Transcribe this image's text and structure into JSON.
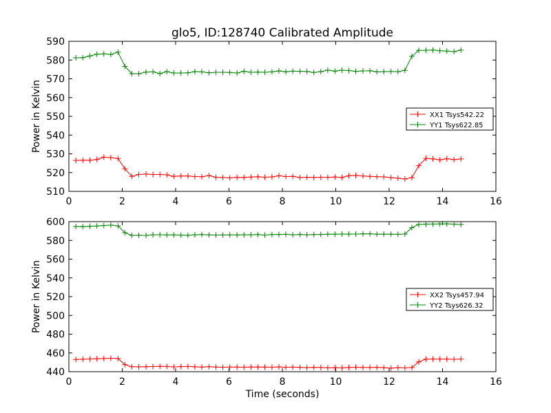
{
  "figure": {
    "title": "glo5, ID:128740 Calibrated Amplitude",
    "xlabel": "Time (seconds)"
  },
  "chart_data": [
    {
      "type": "line",
      "title": "glo5, ID:128740 Calibrated Amplitude",
      "xlabel": "",
      "ylabel": "Power in Kelvin",
      "xlim": [
        0,
        16
      ],
      "ylim": [
        510,
        590
      ],
      "xticks": [
        0,
        2,
        4,
        6,
        8,
        10,
        12,
        14,
        16
      ],
      "yticks": [
        510,
        520,
        530,
        540,
        550,
        560,
        570,
        580,
        590
      ],
      "grid": false,
      "legend_position": "center-right",
      "x": [
        0.26,
        0.52,
        0.79,
        1.05,
        1.31,
        1.57,
        1.84,
        2.1,
        2.36,
        2.62,
        2.89,
        3.15,
        3.41,
        3.67,
        3.93,
        4.2,
        4.46,
        4.72,
        4.98,
        5.25,
        5.51,
        5.77,
        6.03,
        6.3,
        6.56,
        6.82,
        7.08,
        7.34,
        7.61,
        7.87,
        8.13,
        8.39,
        8.66,
        8.92,
        9.18,
        9.44,
        9.7,
        9.97,
        10.23,
        10.49,
        10.75,
        11.02,
        11.28,
        11.54,
        11.8,
        12.07,
        12.33,
        12.59,
        12.85,
        13.11,
        13.38,
        13.64,
        13.9,
        14.16,
        14.43,
        14.69
      ],
      "series": [
        {
          "name": "XX1 Tsys542.22",
          "color": "#ff0000",
          "values": [
            526.5,
            526.6,
            526.6,
            527.0,
            528.2,
            528.0,
            527.5,
            522.0,
            518.0,
            519.0,
            519.2,
            519.0,
            519.0,
            518.8,
            518.0,
            518.2,
            518.2,
            517.9,
            517.8,
            518.4,
            517.5,
            517.4,
            517.2,
            517.5,
            517.4,
            517.6,
            517.8,
            517.5,
            517.7,
            518.3,
            517.9,
            518.0,
            517.4,
            517.5,
            517.4,
            517.5,
            517.5,
            517.6,
            517.4,
            518.3,
            518.5,
            518.2,
            518.0,
            517.8,
            517.7,
            517.3,
            517.0,
            516.6,
            517.3,
            523.7,
            527.6,
            527.3,
            526.8,
            527.4,
            526.9,
            527.3
          ]
        },
        {
          "name": "YY1 Tsys622.85",
          "color": "#008000",
          "values": [
            581.2,
            581.3,
            582.2,
            583.1,
            583.3,
            583.0,
            584.2,
            576.6,
            572.7,
            572.7,
            573.6,
            573.7,
            572.8,
            573.8,
            573.1,
            573.1,
            573.2,
            573.8,
            573.7,
            573.2,
            573.5,
            573.5,
            573.4,
            573.1,
            574.0,
            573.5,
            573.6,
            573.5,
            573.7,
            574.2,
            573.7,
            574.1,
            574.0,
            573.9,
            573.4,
            573.8,
            574.6,
            574.1,
            574.6,
            574.4,
            574.0,
            574.2,
            574.3,
            573.7,
            573.8,
            573.9,
            573.8,
            574.5,
            582.0,
            585.2,
            585.2,
            585.3,
            585.0,
            584.8,
            584.5,
            585.3
          ]
        }
      ]
    },
    {
      "type": "line",
      "title": "",
      "xlabel": "Time (seconds)",
      "ylabel": "Power in Kelvin",
      "xlim": [
        0,
        16
      ],
      "ylim": [
        440,
        600
      ],
      "xticks": [
        0,
        2,
        4,
        6,
        8,
        10,
        12,
        14,
        16
      ],
      "yticks": [
        440,
        460,
        480,
        500,
        520,
        540,
        560,
        580,
        600
      ],
      "grid": false,
      "legend_position": "center-right",
      "x": [
        0.26,
        0.52,
        0.79,
        1.05,
        1.31,
        1.57,
        1.84,
        2.1,
        2.36,
        2.62,
        2.89,
        3.15,
        3.41,
        3.67,
        3.93,
        4.2,
        4.46,
        4.72,
        4.98,
        5.25,
        5.51,
        5.77,
        6.03,
        6.3,
        6.56,
        6.82,
        7.08,
        7.34,
        7.61,
        7.87,
        8.13,
        8.39,
        8.66,
        8.92,
        9.18,
        9.44,
        9.7,
        9.97,
        10.23,
        10.49,
        10.75,
        11.02,
        11.28,
        11.54,
        11.8,
        12.07,
        12.33,
        12.59,
        12.85,
        13.11,
        13.38,
        13.64,
        13.9,
        14.16,
        14.43,
        14.69
      ],
      "series": [
        {
          "name": "XX2 Tsys457.94",
          "color": "#ff0000",
          "values": [
            453.0,
            453.3,
            453.6,
            453.8,
            454.0,
            454.3,
            454.0,
            447.5,
            445.3,
            445.2,
            445.3,
            445.5,
            445.7,
            445.6,
            445.1,
            445.4,
            445.6,
            445.2,
            445.0,
            445.3,
            445.0,
            444.8,
            445.0,
            444.9,
            444.8,
            445.0,
            444.9,
            444.9,
            444.8,
            445.1,
            444.7,
            444.9,
            444.6,
            444.3,
            444.6,
            444.5,
            444.1,
            444.3,
            444.0,
            444.5,
            444.8,
            444.5,
            444.5,
            444.6,
            444.2,
            443.8,
            444.3,
            444.0,
            444.4,
            450.5,
            453.4,
            453.5,
            453.5,
            453.5,
            453.2,
            453.5
          ]
        },
        {
          "name": "YY2 Tsys626.32",
          "color": "#008000",
          "values": [
            594.8,
            594.7,
            595.1,
            595.4,
            595.9,
            596.3,
            595.5,
            588.2,
            585.4,
            585.4,
            585.3,
            586.0,
            586.1,
            585.8,
            585.9,
            585.6,
            585.5,
            586.0,
            586.2,
            585.9,
            585.7,
            585.8,
            585.8,
            585.8,
            586.0,
            586.0,
            586.2,
            585.7,
            586.2,
            586.3,
            586.5,
            586.0,
            586.3,
            586.0,
            586.2,
            586.3,
            586.6,
            586.6,
            586.8,
            586.7,
            586.8,
            587.0,
            587.1,
            586.6,
            586.7,
            586.6,
            586.5,
            586.8,
            593.6,
            597.0,
            597.3,
            597.4,
            597.5,
            597.6,
            597.3,
            597.0
          ]
        }
      ]
    }
  ]
}
